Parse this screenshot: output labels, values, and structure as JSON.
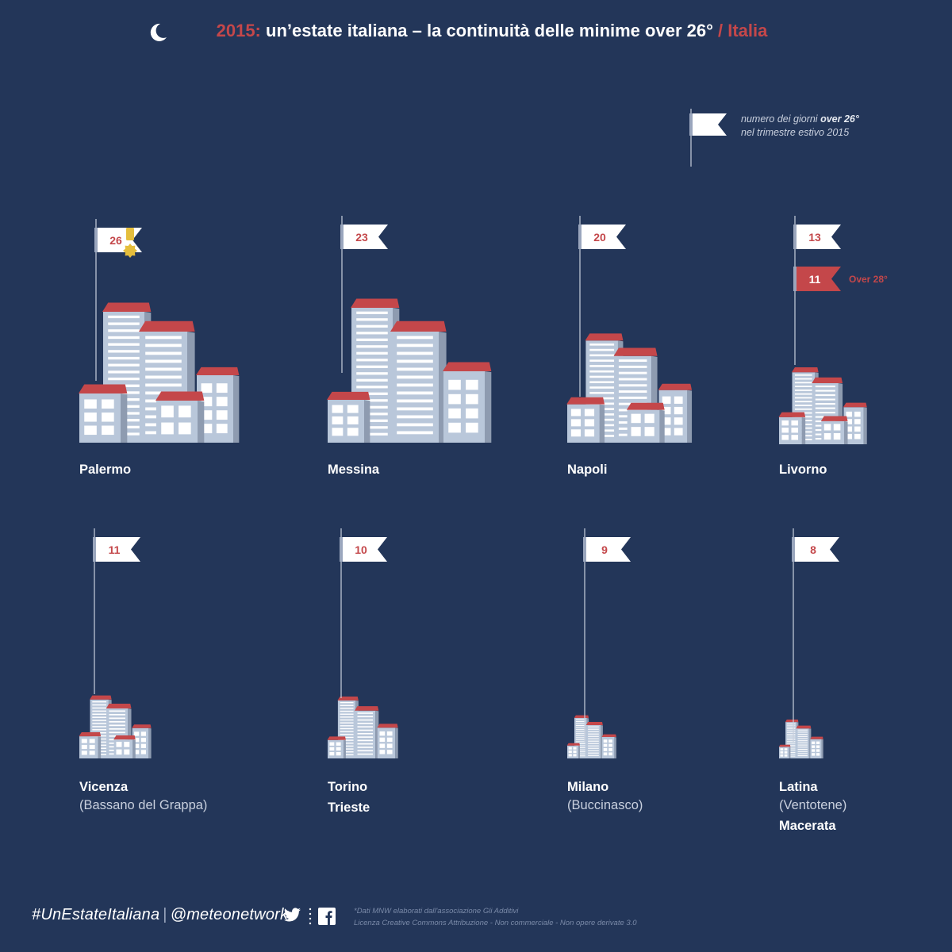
{
  "title": {
    "year": "2015:",
    "main": "un’estate italiana – la continuità delle minime over 26°",
    "slash": " / ",
    "region": "Italia"
  },
  "legend": {
    "line1_a": "numero dei giorni ",
    "line1_b": "over 26°",
    "line2": "nel trimestre estivo 2015"
  },
  "over28_label": "Over 28°",
  "colors": {
    "background": "#233659",
    "flag": "#ffffff",
    "flag_text": "#c4474a",
    "roof": "#c4474a",
    "wall": "#b9c7da",
    "wall_side": "#8e9bb0",
    "medal": "#e5be3c"
  },
  "chart_data": {
    "type": "pictogram",
    "title": "2015: un’estate italiana – la continuità delle minime over 26° / Italia",
    "legend": "numero dei giorni over 26° nel trimestre estivo 2015",
    "cities": [
      {
        "name": "Palermo",
        "sub": "",
        "extra": "",
        "days_over_26": 26,
        "medal": true
      },
      {
        "name": "Messina",
        "sub": "",
        "extra": "",
        "days_over_26": 23
      },
      {
        "name": "Napoli",
        "sub": "",
        "extra": "",
        "days_over_26": 20
      },
      {
        "name": "Livorno",
        "sub": "",
        "extra": "",
        "days_over_26": 13,
        "days_over_28": 11
      },
      {
        "name": "Vicenza",
        "sub": "(Bassano del Grappa)",
        "extra": "",
        "days_over_26": 11
      },
      {
        "name": "Torino",
        "sub": "",
        "extra": "Trieste",
        "days_over_26": 10
      },
      {
        "name": "Milano",
        "sub": "(Buccinasco)",
        "extra": "",
        "days_over_26": 9
      },
      {
        "name": "Latina",
        "sub": "(Ventotene)",
        "extra": "Macerata",
        "days_over_26": 8
      }
    ]
  },
  "footer": {
    "hashtag": "#UnEstateItaliana",
    "handle": "@meteonetwork",
    "credit_line1": "*Dati MNW elaborati dall'associazione Gli Additivi",
    "credit_line2": "Licenza Creative Commons  Attribuzione - Non commerciale - Non opere derivate 3.0"
  }
}
